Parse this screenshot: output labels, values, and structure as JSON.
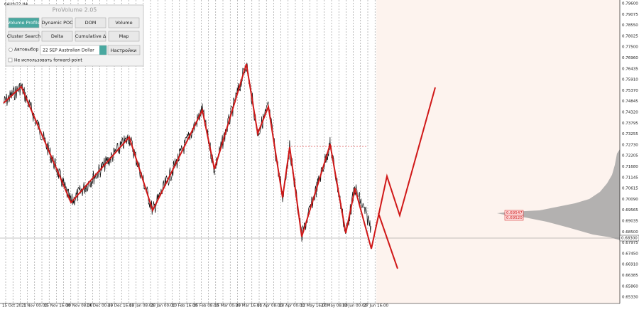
{
  "symbol": "6AU9/22,H4",
  "panel": {
    "title": "ProVolume 2.05",
    "buttons": [
      "Volume Profile",
      "Dynamic POC",
      "DOM",
      "Volume",
      "Cluster Search",
      "Delta",
      "Cumulative Δ",
      "Map"
    ],
    "auto_select": "Автовыбор",
    "instrument": "22 SEP Australian Dollar",
    "settings": "Настройки",
    "forward_point": "Не использовать forward-point"
  },
  "price_axis": [
    "0.79600",
    "0.79075",
    "0.78550",
    "0.78025",
    "0.77500",
    "0.76960",
    "0.76435",
    "0.75910",
    "0.75370",
    "0.74845",
    "0.74320",
    "0.73795",
    "0.73255",
    "0.72730",
    "0.72205",
    "0.71680",
    "0.71145",
    "0.70615",
    "0.70090",
    "0.69565",
    "0.69035",
    "0.68500",
    "0.67975",
    "0.67450",
    "0.66910",
    "0.66385",
    "0.65860",
    "0.65330"
  ],
  "current_price": "0.68300",
  "level_labels": [
    "0.69547",
    "0.69520"
  ],
  "time_axis": [
    "15 Oct 2021",
    "1 Nov 00:00",
    "15 Nov 16:00",
    "30 Nov 08:00",
    "14 Dec 00:00",
    "29 Dec 16:00",
    "13 Jan 08:00",
    "28 Jan 00:00",
    "10 Feb 16:00",
    "25 Feb 08:00",
    "15 Mar 00:00",
    "29 Mar 16:00",
    "11 Apr 08:00",
    "28 Apr 00:00",
    "12 May 16:00",
    "27 May 08:00",
    "13 Jun 00:00",
    "27 Jun 16:00"
  ]
}
